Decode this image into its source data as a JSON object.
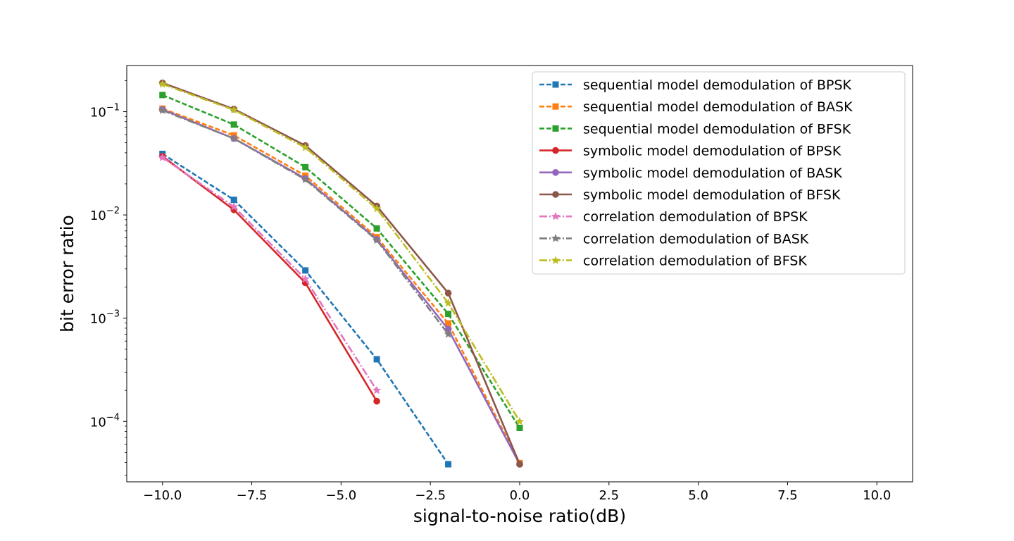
{
  "chart_data": {
    "type": "line",
    "title": "",
    "xlabel": "signal-to-noise ratio(dB)",
    "ylabel": "bit error ratio",
    "xlim": [
      -11,
      11
    ],
    "ylim": [
      2.6e-05,
      0.28
    ],
    "yscale": "log",
    "grid": false,
    "legend_position": "top-right",
    "x_ticks": [
      {
        "value": -10.0,
        "label": "−10.0"
      },
      {
        "value": -7.5,
        "label": "−7.5"
      },
      {
        "value": -5.0,
        "label": "−5.0"
      },
      {
        "value": -2.5,
        "label": "−2.5"
      },
      {
        "value": 0.0,
        "label": "0.0"
      },
      {
        "value": 2.5,
        "label": "2.5"
      },
      {
        "value": 5.0,
        "label": "5.0"
      },
      {
        "value": 7.5,
        "label": "7.5"
      },
      {
        "value": 10.0,
        "label": "10.0"
      }
    ],
    "y_ticks": [
      {
        "value": 0.0001,
        "base": "10",
        "exp": "−4"
      },
      {
        "value": 0.001,
        "base": "10",
        "exp": "−3"
      },
      {
        "value": 0.01,
        "base": "10",
        "exp": "−2"
      },
      {
        "value": 0.1,
        "base": "10",
        "exp": "−1"
      }
    ],
    "series": [
      {
        "name": "sequential model demodulation of BPSK",
        "color": "#1f77b4",
        "dash": "dashed",
        "marker": "square",
        "x": [
          -10,
          -8,
          -6,
          -4,
          -2
        ],
        "y": [
          0.039,
          0.014,
          0.0029,
          0.0004,
          3.85e-05
        ]
      },
      {
        "name": "sequential model demodulation of BASK",
        "color": "#ff7f0e",
        "dash": "dashed",
        "marker": "square",
        "x": [
          -10,
          -8,
          -6,
          -4,
          -2,
          0
        ],
        "y": [
          0.107,
          0.059,
          0.024,
          0.0061,
          0.00089,
          3.95e-05
        ]
      },
      {
        "name": "sequential model demodulation of BFSK",
        "color": "#2ca02c",
        "dash": "dashed",
        "marker": "square",
        "x": [
          -10,
          -8,
          -6,
          -4,
          -2,
          0
        ],
        "y": [
          0.145,
          0.075,
          0.029,
          0.0074,
          0.0011,
          8.65e-05
        ]
      },
      {
        "name": "symbolic model demodulation of BPSK",
        "color": "#d62728",
        "dash": "solid",
        "marker": "circle",
        "x": [
          -10,
          -8,
          -6,
          -4
        ],
        "y": [
          0.037,
          0.0112,
          0.0022,
          0.000157
        ]
      },
      {
        "name": "symbolic model demodulation of BASK",
        "color": "#9467bd",
        "dash": "solid",
        "marker": "circle",
        "x": [
          -10,
          -8,
          -6,
          -4,
          -2,
          0
        ],
        "y": [
          0.105,
          0.055,
          0.0225,
          0.0058,
          0.00078,
          3.85e-05
        ]
      },
      {
        "name": "symbolic model demodulation of BFSK",
        "color": "#8c564b",
        "dash": "solid",
        "marker": "circle",
        "x": [
          -10,
          -8,
          -6,
          -4,
          -2,
          0
        ],
        "y": [
          0.19,
          0.106,
          0.047,
          0.0122,
          0.00175,
          3.85e-05
        ]
      },
      {
        "name": "correlation demodulation of BPSK",
        "color": "#e377c2",
        "dash": "dashdot",
        "marker": "star",
        "x": [
          -10,
          -8,
          -6,
          -4
        ],
        "y": [
          0.036,
          0.012,
          0.0024,
          0.0002
        ]
      },
      {
        "name": "correlation demodulation of BASK",
        "color": "#7f7f7f",
        "dash": "dashdot",
        "marker": "star",
        "x": [
          -10,
          -8,
          -6,
          -4,
          -2
        ],
        "y": [
          0.103,
          0.055,
          0.022,
          0.0057,
          0.0007
        ]
      },
      {
        "name": "correlation demodulation of BFSK",
        "color": "#bcbd22",
        "dash": "dashdot",
        "marker": "star",
        "x": [
          -10,
          -8,
          -6,
          -4,
          -2,
          0
        ],
        "y": [
          0.185,
          0.104,
          0.045,
          0.0115,
          0.0014,
          0.0001
        ]
      }
    ]
  }
}
